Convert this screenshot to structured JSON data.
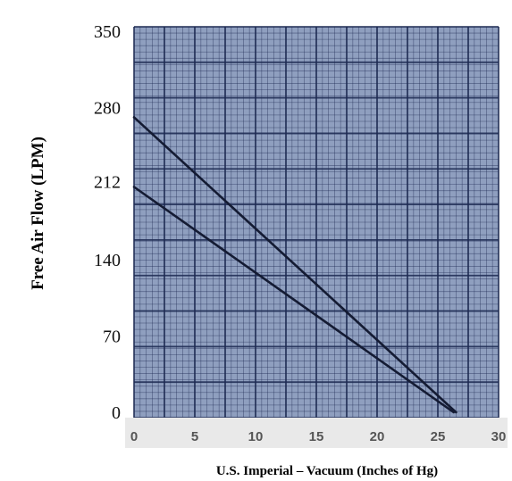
{
  "chart_data": {
    "type": "line",
    "title": "",
    "xlabel": "U.S. Imperial – Vacuum (Inches of Hg)",
    "ylabel": "Free Air Flow (LPM)",
    "xlim": [
      0,
      30
    ],
    "ylim": [
      0,
      350
    ],
    "x_ticks": [
      "0",
      "5",
      "10",
      "15",
      "20",
      "25",
      "30"
    ],
    "y_ticks": [
      "0",
      "70",
      "140",
      "212",
      "280",
      "350"
    ],
    "grid": true,
    "plot_background": "#8f9fbf",
    "grid_color": "#1d2a52",
    "line_color": "#141b33",
    "series": [
      {
        "x": [
          0,
          26.5
        ],
        "y": [
          271,
          0
        ]
      },
      {
        "x": [
          0,
          26.3
        ],
        "y": [
          207,
          0
        ]
      }
    ]
  }
}
